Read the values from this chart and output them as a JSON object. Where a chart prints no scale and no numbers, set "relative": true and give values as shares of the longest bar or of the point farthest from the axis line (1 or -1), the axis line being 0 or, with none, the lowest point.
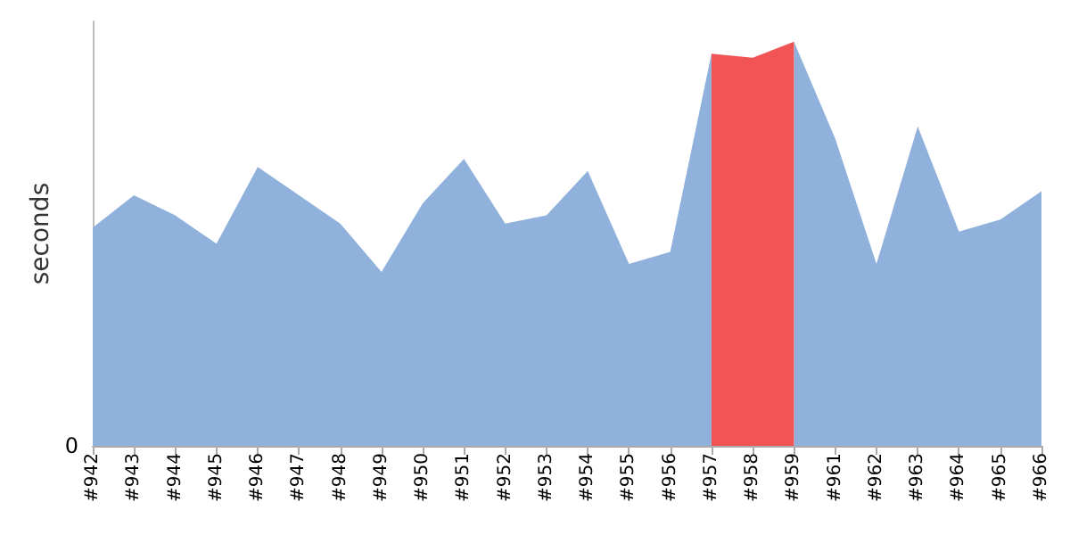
{
  "chart_data": {
    "type": "area",
    "ylabel": "seconds",
    "relative": true,
    "annotations": [
      "0"
    ],
    "categories": [
      "#942",
      "#943",
      "#944",
      "#945",
      "#946",
      "#947",
      "#948",
      "#949",
      "#950",
      "#951",
      "#952",
      "#953",
      "#954",
      "#955",
      "#956",
      "#957",
      "#958",
      "#959",
      "#961",
      "#962",
      "#963",
      "#964",
      "#965",
      "#966"
    ],
    "series": [
      {
        "color": "#8fb1db",
        "values": [
          0.54,
          0.62,
          0.57,
          0.5,
          0.69,
          0.62,
          0.55,
          0.43,
          0.6,
          0.71,
          0.55,
          0.57,
          0.68,
          0.45,
          0.48,
          0.97,
          null,
          1,
          0.76,
          0.45,
          0.79,
          0.53,
          0.56,
          0.63
        ]
      },
      {
        "color": "#f05454",
        "values": [
          null,
          null,
          null,
          null,
          null,
          null,
          null,
          null,
          null,
          null,
          null,
          null,
          null,
          null,
          null,
          0.97,
          0.96,
          1,
          null,
          null,
          null,
          null,
          null,
          null
        ]
      }
    ],
    "grid": false
  }
}
